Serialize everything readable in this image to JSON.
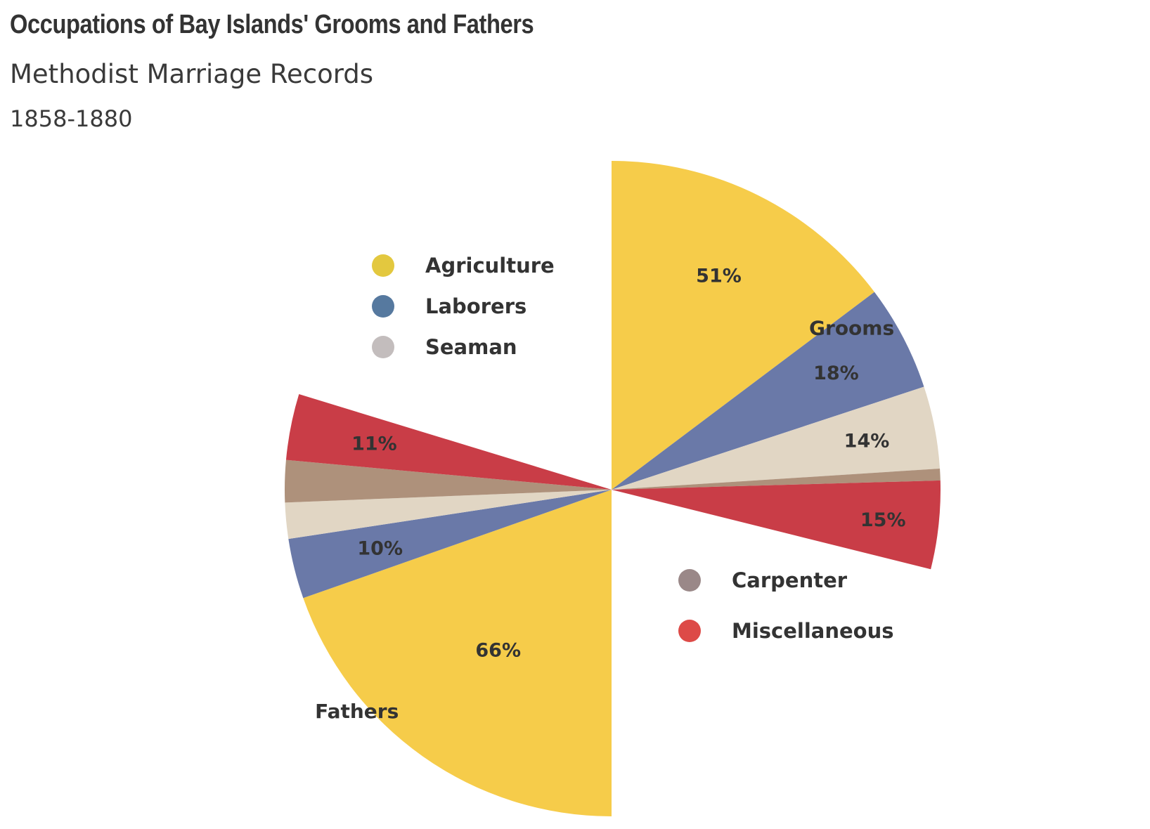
{
  "title": "Occupations of Bay Islands' Grooms and Fathers",
  "subtitle": "Methodist Marriage Records",
  "date_range": "1858-1880",
  "chart_data": {
    "type": "pie",
    "title": "Occupations of Bay Islands' Grooms and Fathers",
    "subtitle": "Methodist Marriage Records",
    "categories": [
      "Agriculture",
      "Laborers",
      "Seaman",
      "Carpenter",
      "Miscellaneous"
    ],
    "legend_colors": [
      "#e3c83f",
      "#56799f",
      "#c3bdbd",
      "#9a8888",
      "#dd4a47"
    ],
    "slice_colors": [
      "#f6cc4a",
      "#6a79a8",
      "#e1d6c4",
      "#ae917b",
      "#c93d47"
    ],
    "series": [
      {
        "name": "Grooms",
        "values": [
          51,
          18,
          14,
          2,
          15
        ],
        "data_labels": [
          "51%",
          "18%",
          "14%",
          "",
          "15%"
        ]
      },
      {
        "name": "Fathers",
        "values": [
          66,
          10,
          6,
          7,
          11
        ],
        "data_labels": [
          "66%",
          "10%",
          "",
          "",
          "11%"
        ]
      }
    ],
    "legend": [
      {
        "position": "top-left",
        "items": [
          "Agriculture",
          "Laborers",
          "Seaman"
        ]
      },
      {
        "position": "bottom-right",
        "items": [
          "Carpenter",
          "Miscellaneous"
        ]
      }
    ]
  }
}
